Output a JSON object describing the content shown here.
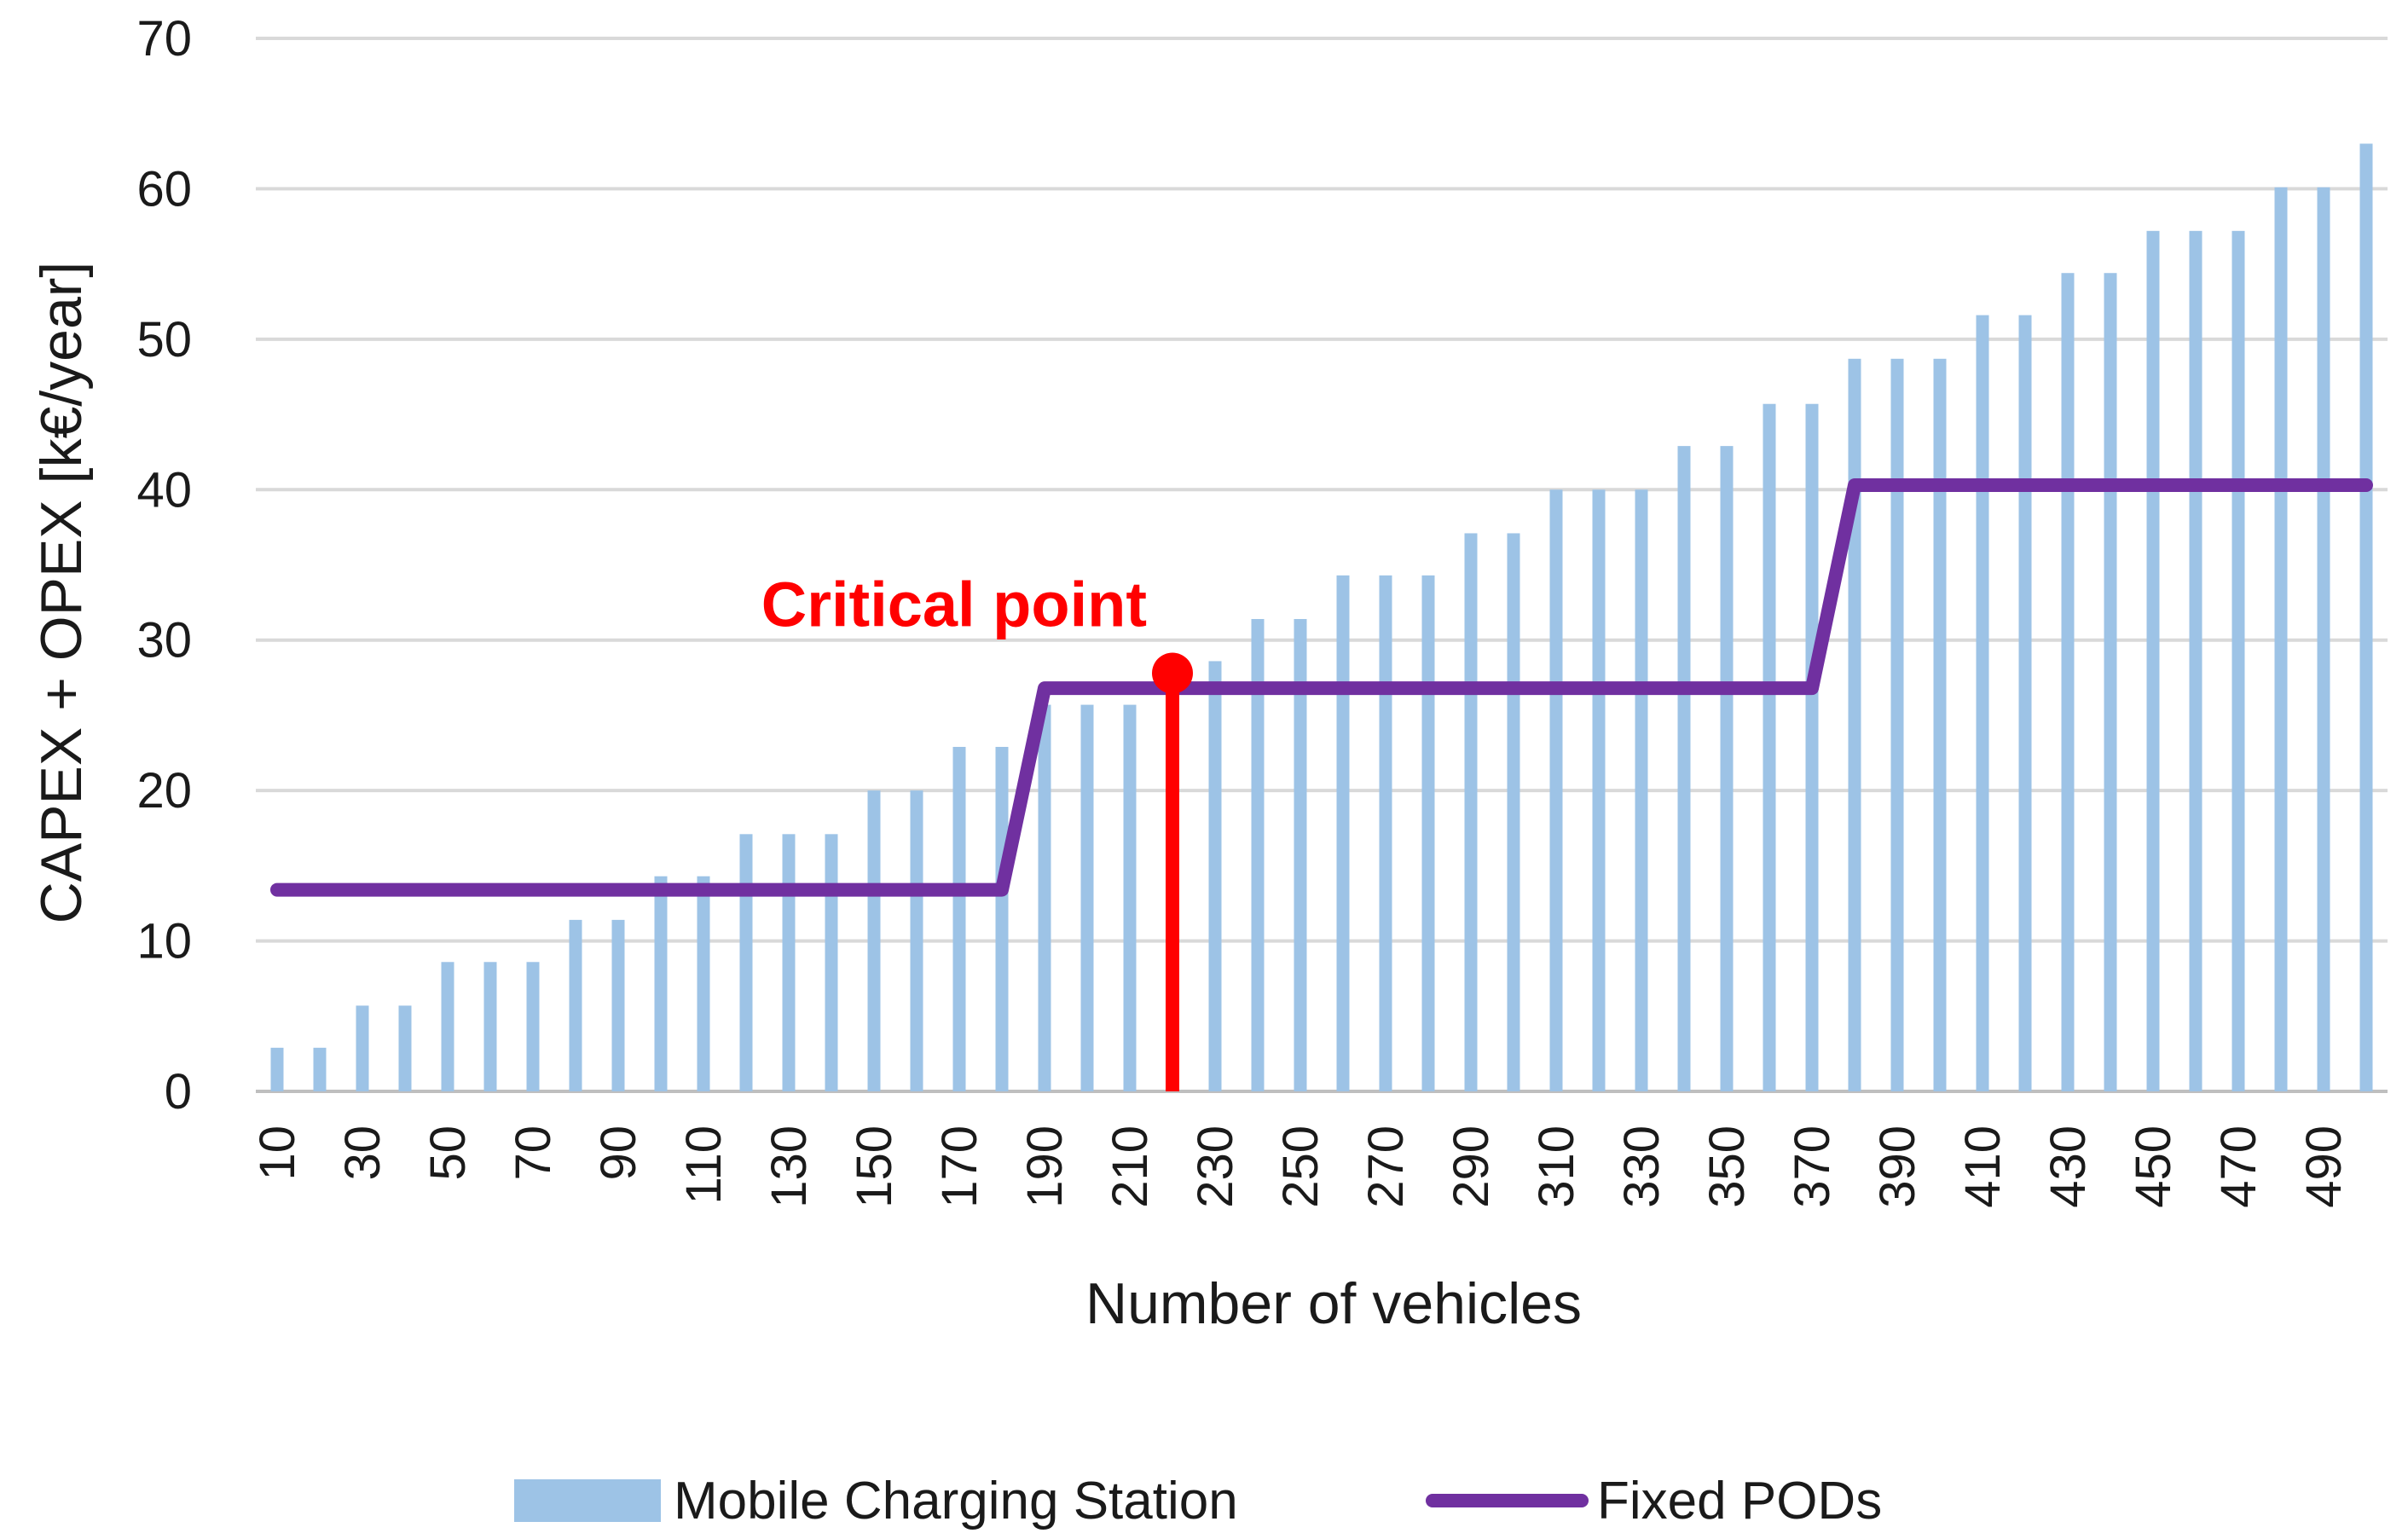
{
  "chart_data": {
    "type": "bar",
    "title": "",
    "xlabel": "Number of vehicles",
    "ylabel": "CAPEX + OPEX [k€/year]",
    "ylim": [
      0,
      70
    ],
    "yticks": [
      0,
      10,
      20,
      30,
      40,
      50,
      60,
      70
    ],
    "grid": true,
    "legend_position": "bottom",
    "categories": [
      10,
      20,
      30,
      40,
      50,
      60,
      70,
      80,
      90,
      100,
      110,
      120,
      130,
      140,
      150,
      160,
      170,
      180,
      190,
      200,
      210,
      220,
      230,
      240,
      250,
      260,
      270,
      280,
      290,
      300,
      310,
      320,
      330,
      340,
      350,
      360,
      370,
      380,
      390,
      400,
      410,
      420,
      430,
      440,
      450,
      460,
      470,
      480,
      490,
      500
    ],
    "xtick_labels": [
      "10",
      "30",
      "50",
      "70",
      "90",
      "110",
      "130",
      "150",
      "170",
      "190",
      "210",
      "230",
      "250",
      "270",
      "290",
      "310",
      "330",
      "350",
      "370",
      "390",
      "410",
      "430",
      "450",
      "470",
      "490"
    ],
    "series": [
      {
        "name": "Mobile Charging Station",
        "type": "bar",
        "color": "#9dc3e6",
        "values": [
          2.9,
          2.9,
          5.7,
          5.7,
          8.6,
          8.6,
          8.6,
          11.4,
          11.4,
          14.3,
          14.3,
          17.1,
          17.1,
          17.1,
          20.0,
          20.0,
          22.9,
          22.9,
          25.7,
          25.7,
          25.7,
          28.6,
          28.6,
          31.4,
          31.4,
          34.3,
          34.3,
          34.3,
          37.1,
          37.1,
          40.0,
          40.0,
          40.0,
          42.9,
          42.9,
          45.7,
          45.7,
          48.7,
          48.7,
          48.7,
          51.6,
          51.6,
          54.4,
          54.4,
          57.2,
          57.2,
          57.2,
          60.1,
          60.1,
          63.0
        ]
      },
      {
        "name": "Fixed PODs",
        "type": "line",
        "color": "#7030a0",
        "values": [
          13.4,
          13.4,
          13.4,
          13.4,
          13.4,
          13.4,
          13.4,
          13.4,
          13.4,
          13.4,
          13.4,
          13.4,
          13.4,
          13.4,
          13.4,
          13.4,
          13.4,
          13.4,
          26.8,
          26.8,
          26.8,
          26.8,
          26.8,
          26.8,
          26.8,
          26.8,
          26.8,
          26.8,
          26.8,
          26.8,
          26.8,
          26.8,
          26.8,
          26.8,
          26.8,
          26.8,
          26.8,
          40.3,
          40.3,
          40.3,
          40.3,
          40.3,
          40.3,
          40.3,
          40.3,
          40.3,
          40.3,
          40.3,
          40.3,
          40.3
        ]
      }
    ],
    "annotations": [
      {
        "text": "Critical point",
        "x": 220,
        "y": 27.8,
        "color": "#ff0000"
      }
    ]
  }
}
